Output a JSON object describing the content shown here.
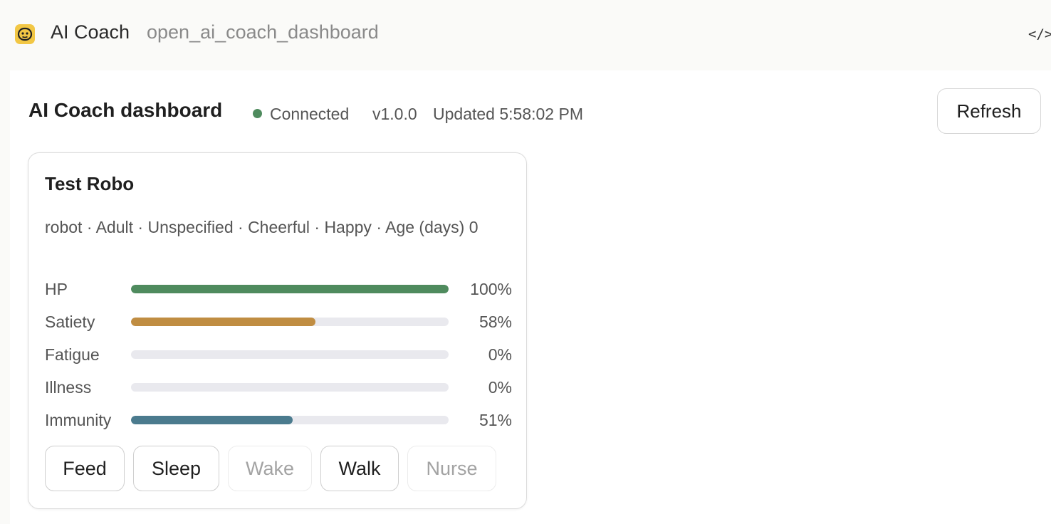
{
  "app": {
    "title": "AI Coach",
    "subtitle": "open_ai_coach_dashboard",
    "code_toggle_label": "</>",
    "logo_color": "#f2c745"
  },
  "dashboard": {
    "title": "AI Coach dashboard",
    "status": "Connected",
    "status_color": "#4f8b5e",
    "version": "v1.0.0",
    "updated": "Updated 5:58:02 PM",
    "refresh_label": "Refresh"
  },
  "pet": {
    "name": "Test Robo",
    "meta": "robot · Adult · Unspecified · Cheerful · Happy · Age (days) 0",
    "stats": [
      {
        "label": "HP",
        "value": 100,
        "display": "100%",
        "color": "#4f8b5e"
      },
      {
        "label": "Satiety",
        "value": 58,
        "display": "58%",
        "color": "#c08d42"
      },
      {
        "label": "Fatigue",
        "value": 0,
        "display": "0%",
        "color": "#8a8a9a"
      },
      {
        "label": "Illness",
        "value": 0,
        "display": "0%",
        "color": "#8a8a9a"
      },
      {
        "label": "Immunity",
        "value": 51,
        "display": "51%",
        "color": "#4b7b8e"
      }
    ],
    "actions": [
      {
        "label": "Feed",
        "enabled": true
      },
      {
        "label": "Sleep",
        "enabled": true
      },
      {
        "label": "Wake",
        "enabled": false
      },
      {
        "label": "Walk",
        "enabled": true
      },
      {
        "label": "Nurse",
        "enabled": false
      }
    ]
  }
}
